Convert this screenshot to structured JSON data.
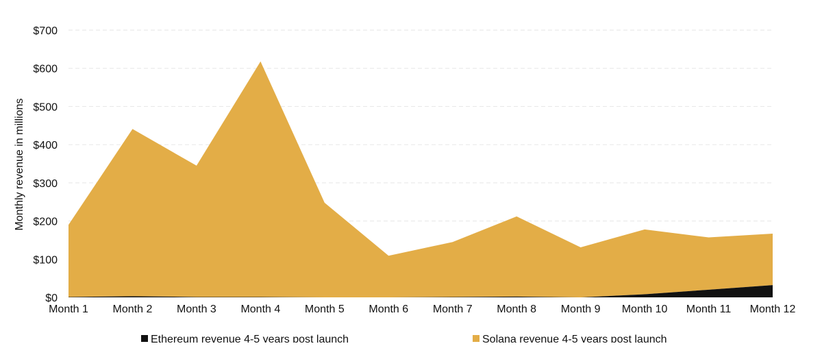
{
  "chart_data": {
    "type": "area",
    "stacked": true,
    "categories": [
      "Month 1",
      "Month 2",
      "Month 3",
      "Month 4",
      "Month 5",
      "Month 6",
      "Month 7",
      "Month 8",
      "Month 9",
      "Month 10",
      "Month 11",
      "Month 12"
    ],
    "series": [
      {
        "name": "Ethereum revenue 4-5 years post launch",
        "color": "#111111",
        "values": [
          1,
          3,
          1,
          1,
          0,
          0,
          1,
          2,
          0,
          8,
          20,
          32
        ]
      },
      {
        "name": "Solana revenue 4-5 years post launch",
        "color": "#e3ad47",
        "values": [
          189,
          438,
          344,
          617,
          248,
          109,
          144,
          210,
          131,
          170,
          137,
          135
        ]
      }
    ],
    "ylabel": "Monthly revenue in millions",
    "xlabel": "",
    "ylim": [
      0,
      700
    ],
    "yticks": [
      0,
      100,
      200,
      300,
      400,
      500,
      600,
      700
    ],
    "ytick_labels": [
      "$0",
      "$100",
      "$200",
      "$300",
      "$400",
      "$500",
      "$600",
      "$700"
    ],
    "grid": true,
    "legend_position": "bottom"
  }
}
